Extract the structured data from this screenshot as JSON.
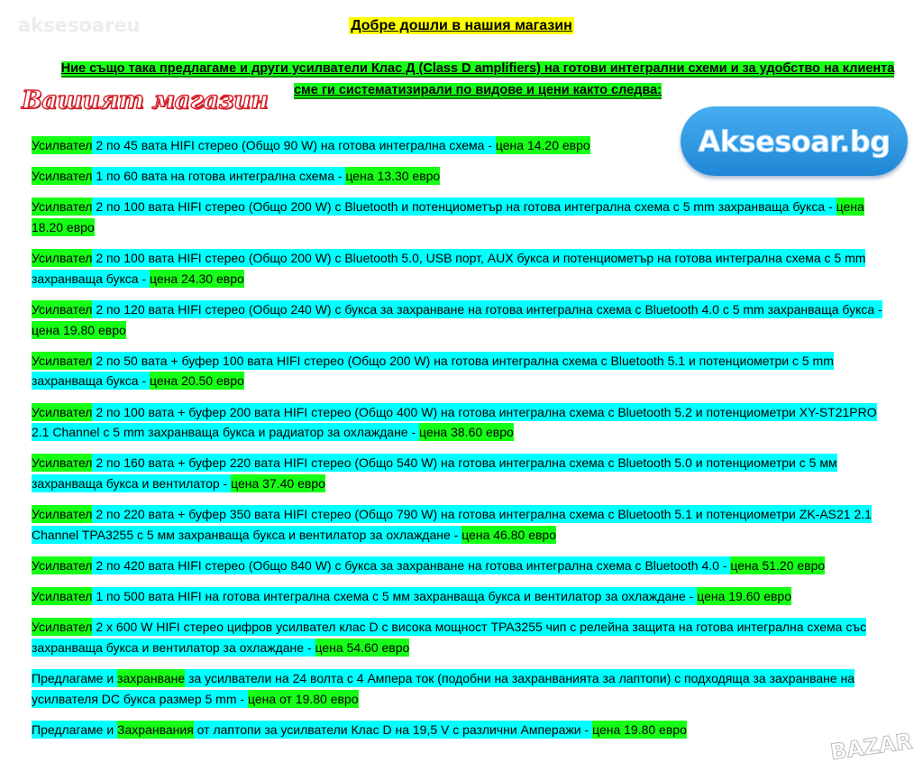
{
  "watermark": "aksesoareu",
  "title": "Добре дошли в нашия магазин",
  "intro": "Ние също така предлагаме и други усилватели Клас Д (Class D amplifiers) на готови интегрални схеми и за удобство на клиента сме ги систематизирали по видове и цени както следва:",
  "shop_heading": "Вашият магазин",
  "logo_text": "Aksesoar.bg",
  "bottom_watermark": "BAZAR",
  "colors": {
    "green": "#16ff16",
    "cyan": "#00ffff",
    "yellow": "#ffff00",
    "logo_blue": "#2b95e0"
  },
  "items": [
    {
      "segments": [
        {
          "text": "Усилвател",
          "hl": "green"
        },
        {
          "text": " 2 по 45 вата HIFI стерео (Общо 90 W) на готова интегрална схема - ",
          "hl": "cyan"
        },
        {
          "text": "цена 14.20 евро",
          "hl": "green"
        }
      ]
    },
    {
      "segments": [
        {
          "text": "Усилвател",
          "hl": "green"
        },
        {
          "text": " 1 по 60 вата на готова интегрална схема - ",
          "hl": "cyan"
        },
        {
          "text": "цена 13.30 евро",
          "hl": "green"
        }
      ]
    },
    {
      "segments": [
        {
          "text": "Усилвател",
          "hl": "green"
        },
        {
          "text": " 2 по 100 вата HIFI стерео (Общо 200 W) с Bluetooth и потенциометър на готова интегрална схема с 5 mm захранваща букса - ",
          "hl": "cyan"
        },
        {
          "text": "цена 18.20 евро",
          "hl": "green"
        }
      ]
    },
    {
      "segments": [
        {
          "text": "Усилвател",
          "hl": "green"
        },
        {
          "text": " 2 по 100 вата HIFI стерео (Общо 200 W) с Bluetooth 5.0, USB порт, AUX букса и потенциометър на готова интегрална схема с 5 mm захранваща букса - ",
          "hl": "cyan"
        },
        {
          "text": "цена 24.30 евро",
          "hl": "green"
        }
      ]
    },
    {
      "segments": [
        {
          "text": "Усилвател",
          "hl": "green"
        },
        {
          "text": " 2 по 120 вата HIFI стерео (Общо 240 W) с букса за захранване на готова интегрална схема с Bluetooth 4.0 с 5 mm захранваща букса - ",
          "hl": "cyan"
        },
        {
          "text": "цена 19.80 евро",
          "hl": "green"
        }
      ]
    },
    {
      "segments": [
        {
          "text": "Усилвател",
          "hl": "green"
        },
        {
          "text": " 2 по 50 вата + буфер 100 вата HIFI стерео (Общо 200 W) на готова интегрална схема с Bluetooth 5.1 и потенциометри с 5 mm захранваща букса - ",
          "hl": "cyan"
        },
        {
          "text": "цена 20.50 евро",
          "hl": "green"
        }
      ]
    },
    {
      "segments": [
        {
          "text": "Усилвател",
          "hl": "green"
        },
        {
          "text": " 2 по 100 вата + буфер 200 вата HIFI стерео (Общо 400 W) на готова интегрална схема с Bluetooth 5.2 и потенциометри XY-ST21PRO 2.1 Channel  с 5 mm захранваща букса и радиатор за охлаждане - ",
          "hl": "cyan"
        },
        {
          "text": "цена 38.60 евро",
          "hl": "green"
        }
      ]
    },
    {
      "segments": [
        {
          "text": "Усилвател",
          "hl": "green"
        },
        {
          "text": " 2 по 160 вата + буфер 220 вата HIFI стерео (Общо 540 W) на готова интегрална схема с Bluetooth 5.0 и потенциометри с 5 мм захранваща букса и вентилатор - ",
          "hl": "cyan"
        },
        {
          "text": "цена 37.40 евро",
          "hl": "green"
        }
      ]
    },
    {
      "segments": [
        {
          "text": "Усилвател",
          "hl": "green"
        },
        {
          "text": " 2 по 220 вата + буфер 350 вата HIFI стерео (Общо 790 W) на готова интегрална схема с Bluetooth 5.1 и потенциометри ZK-AS21 2.1 Channel TPA3255 с 5 мм захранваща букса и вентилатор за охлаждане - ",
          "hl": "cyan"
        },
        {
          "text": "цена 46.80 евро",
          "hl": "green"
        }
      ]
    },
    {
      "segments": [
        {
          "text": "Усилвател",
          "hl": "green"
        },
        {
          "text": " 2 по 420 вата HIFI стерео (Общо 840 W) с букса за захранване на готова интегрална схема с Bluetooth 4.0 - ",
          "hl": "cyan"
        },
        {
          "text": "цена 51.20 евро",
          "hl": "green"
        }
      ]
    },
    {
      "segments": [
        {
          "text": "Усилвател",
          "hl": "green"
        },
        {
          "text": " 1 по 500 вата HIFI на готова интегрална схема с 5 мм захранваща букса и вентилатор за охлаждане - ",
          "hl": "cyan"
        },
        {
          "text": "цена 19.60 евро",
          "hl": "green"
        }
      ]
    },
    {
      "segments": [
        {
          "text": "Усилвател",
          "hl": "green"
        },
        {
          "text": " 2 x 600 W HIFI стерео цифров усилвател клас D с висока мощност TPA3255 чип с релейна защита на готова интегрална схема със захранваща букса и вентилатор за охлаждане - ",
          "hl": "cyan"
        },
        {
          "text": "цена 54.60 евро",
          "hl": "green"
        }
      ]
    },
    {
      "segments": [
        {
          "text": "Предлагаме и ",
          "hl": "cyan"
        },
        {
          "text": "захранване",
          "hl": "green"
        },
        {
          "text": " за усилватели на 24 волта с 4 Ампера ток (подобни на захранванията за лаптопи) с подходяща за захранване на усилвателя DC букса размер 5 mm - ",
          "hl": "cyan"
        },
        {
          "text": "цена от 19.80 евро",
          "hl": "green"
        }
      ]
    },
    {
      "segments": [
        {
          "text": "Предлагаме и ",
          "hl": "cyan"
        },
        {
          "text": "Захранвания",
          "hl": "green"
        },
        {
          "text": " от лаптопи за усилватели Клас D на 19,5 V с различни Амперажи - ",
          "hl": "cyan"
        },
        {
          "text": "цена 19.80 евро",
          "hl": "green"
        }
      ]
    }
  ]
}
